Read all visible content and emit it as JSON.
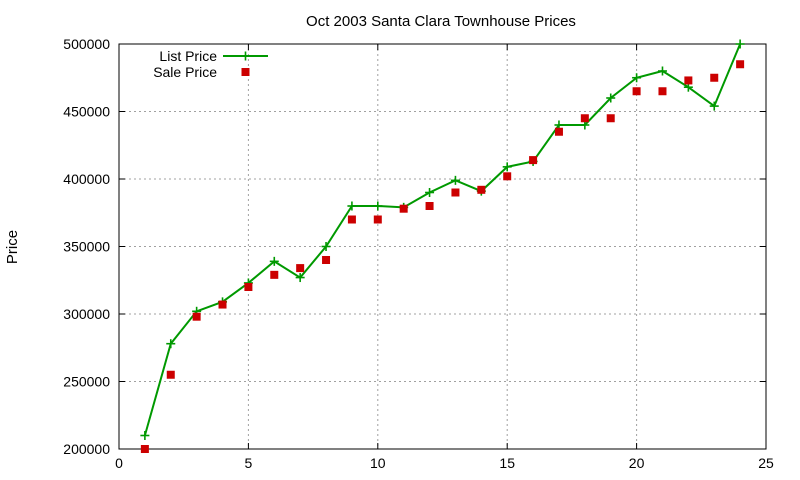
{
  "chart_data": {
    "type": "line",
    "title": "Oct 2003 Santa Clara Townhouse Prices",
    "xlabel": "",
    "ylabel": "Price",
    "xlim": [
      0,
      25
    ],
    "ylim": [
      200000,
      500000
    ],
    "x_ticks": [
      0,
      5,
      10,
      15,
      20,
      25
    ],
    "y_ticks": [
      200000,
      250000,
      300000,
      350000,
      400000,
      450000,
      500000
    ],
    "x_tick_labels": [
      "0",
      "5",
      "10",
      "15",
      "20",
      "25"
    ],
    "y_tick_labels": [
      "200000",
      "250000",
      "300000",
      "350000",
      "400000",
      "450000",
      "500000"
    ],
    "grid": true,
    "legend_position": "top-left",
    "series": [
      {
        "name": "List Price",
        "style": "line-with-plus-markers",
        "color": "#009900",
        "x": [
          1,
          2,
          3,
          4,
          5,
          6,
          7,
          8,
          9,
          10,
          11,
          12,
          13,
          14,
          15,
          16,
          17,
          18,
          19,
          20,
          21,
          22,
          23,
          24
        ],
        "values": [
          210000,
          278000,
          302000,
          309000,
          323000,
          339000,
          327000,
          350000,
          380000,
          380000,
          379000,
          390000,
          399000,
          391000,
          409000,
          413000,
          440000,
          440000,
          460000,
          475000,
          480000,
          468000,
          454000,
          500000
        ]
      },
      {
        "name": "Sale Price",
        "style": "square-markers",
        "color": "#cc0000",
        "x": [
          1,
          2,
          3,
          4,
          5,
          6,
          7,
          8,
          9,
          10,
          11,
          12,
          13,
          14,
          15,
          16,
          17,
          18,
          19,
          20,
          21,
          22,
          23,
          24
        ],
        "values": [
          200000,
          255000,
          298000,
          307000,
          320000,
          329000,
          334000,
          340000,
          370000,
          370000,
          378000,
          380000,
          390000,
          392000,
          402000,
          414000,
          435000,
          445000,
          445000,
          465000,
          465000,
          473000,
          475000,
          485000
        ]
      }
    ]
  }
}
